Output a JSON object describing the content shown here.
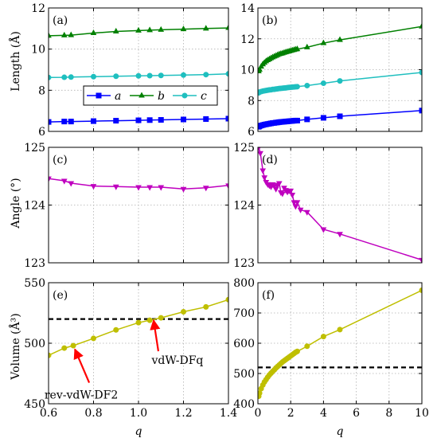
{
  "figure": {
    "ylabels": [
      "Length (Å)",
      "Angle (°)",
      "Volume (Å³)"
    ],
    "xlabel": "q",
    "colors": {
      "a": "#0000ff",
      "b": "#008000",
      "c": "#1fbfbf",
      "angle": "#bf00bf",
      "volume": "#bfbf00",
      "ref": "#000000",
      "arrow": "#ff0000"
    }
  },
  "chart_data": [
    {
      "panel": "(a)",
      "type": "line",
      "xlim": [
        0.6,
        1.4
      ],
      "ylim": [
        6,
        12
      ],
      "xticks": [
        "0.6",
        "0.8",
        "1.0",
        "1.2",
        "1.4"
      ],
      "yticks": [
        "6",
        "8",
        "10",
        "12"
      ],
      "show_xticklabels": false,
      "grid": true,
      "legend_placement": "center-left",
      "series": [
        {
          "name": "a",
          "color": "#0000ff",
          "marker": "square",
          "x": [
            0.6,
            0.67,
            0.7,
            0.8,
            0.9,
            1.0,
            1.05,
            1.1,
            1.2,
            1.3,
            1.4
          ],
          "y": [
            6.46,
            6.48,
            6.48,
            6.5,
            6.52,
            6.54,
            6.55,
            6.56,
            6.58,
            6.6,
            6.62
          ]
        },
        {
          "name": "b",
          "color": "#008000",
          "marker": "triangle-up",
          "x": [
            0.6,
            0.67,
            0.7,
            0.8,
            0.9,
            1.0,
            1.05,
            1.1,
            1.2,
            1.3,
            1.4
          ],
          "y": [
            10.65,
            10.67,
            10.68,
            10.78,
            10.86,
            10.9,
            10.92,
            10.94,
            10.97,
            11.0,
            11.03
          ]
        },
        {
          "name": "c",
          "color": "#1fbfbf",
          "marker": "circle",
          "x": [
            0.6,
            0.67,
            0.7,
            0.8,
            0.9,
            1.0,
            1.05,
            1.1,
            1.2,
            1.3,
            1.4
          ],
          "y": [
            8.62,
            8.63,
            8.64,
            8.66,
            8.68,
            8.7,
            8.71,
            8.72,
            8.74,
            8.76,
            8.8
          ]
        }
      ]
    },
    {
      "panel": "(b)",
      "type": "line",
      "xlim": [
        0,
        10
      ],
      "ylim": [
        6,
        14
      ],
      "xticks": [
        "0",
        "2",
        "4",
        "6",
        "8",
        "10"
      ],
      "yticks": [
        "6",
        "8",
        "10",
        "12",
        "14"
      ],
      "show_xticklabels": false,
      "grid": true,
      "series": [
        {
          "name": "a",
          "color": "#0000ff",
          "marker": "square",
          "x": [
            0.05,
            0.1,
            0.2,
            0.3,
            0.4,
            0.5,
            0.6,
            0.7,
            0.8,
            0.9,
            1.0,
            1.1,
            1.2,
            1.3,
            1.4,
            1.5,
            1.6,
            1.7,
            1.8,
            1.9,
            2.0,
            2.1,
            2.2,
            2.3,
            2.4,
            3.0,
            4.0,
            5.0,
            10.0
          ],
          "y": [
            6.3,
            6.34,
            6.38,
            6.41,
            6.44,
            6.46,
            6.48,
            6.5,
            6.52,
            6.54,
            6.55,
            6.57,
            6.58,
            6.6,
            6.61,
            6.62,
            6.63,
            6.64,
            6.65,
            6.66,
            6.67,
            6.68,
            6.69,
            6.7,
            6.7,
            6.78,
            6.88,
            6.98,
            7.35
          ]
        },
        {
          "name": "b",
          "color": "#008000",
          "marker": "triangle-up",
          "x": [
            0.05,
            0.1,
            0.2,
            0.3,
            0.4,
            0.5,
            0.6,
            0.7,
            0.8,
            0.9,
            1.0,
            1.1,
            1.2,
            1.3,
            1.4,
            1.5,
            1.6,
            1.7,
            1.8,
            1.9,
            2.0,
            2.1,
            2.2,
            2.3,
            2.4,
            3.0,
            4.0,
            5.0,
            10.0
          ],
          "y": [
            9.9,
            10.0,
            10.2,
            10.35,
            10.45,
            10.55,
            10.62,
            10.68,
            10.74,
            10.8,
            10.85,
            10.9,
            10.95,
            11.0,
            11.03,
            11.06,
            11.1,
            11.13,
            11.16,
            11.19,
            11.22,
            11.25,
            11.28,
            11.31,
            11.33,
            11.45,
            11.72,
            11.93,
            12.8
          ]
        },
        {
          "name": "c",
          "color": "#1fbfbf",
          "marker": "circle",
          "x": [
            0.05,
            0.1,
            0.2,
            0.3,
            0.4,
            0.5,
            0.6,
            0.7,
            0.8,
            0.9,
            1.0,
            1.1,
            1.2,
            1.3,
            1.4,
            1.5,
            1.6,
            1.7,
            1.8,
            1.9,
            2.0,
            2.1,
            2.2,
            2.3,
            2.4,
            3.0,
            4.0,
            5.0,
            10.0
          ],
          "y": [
            8.5,
            8.55,
            8.58,
            8.61,
            8.63,
            8.65,
            8.67,
            8.69,
            8.7,
            8.72,
            8.73,
            8.75,
            8.76,
            8.78,
            8.79,
            8.8,
            8.81,
            8.82,
            8.84,
            8.85,
            8.86,
            8.87,
            8.88,
            8.89,
            8.9,
            8.97,
            9.12,
            9.27,
            9.82
          ]
        }
      ]
    },
    {
      "panel": "(c)",
      "type": "line",
      "xlim": [
        0.6,
        1.4
      ],
      "ylim": [
        123,
        125
      ],
      "xticks": [
        "0.6",
        "0.8",
        "1.0",
        "1.2",
        "1.4"
      ],
      "yticks": [
        "123",
        "124",
        "125"
      ],
      "show_xticklabels": false,
      "grid": true,
      "series": [
        {
          "name": "angle",
          "color": "#bf00bf",
          "marker": "triangle-down",
          "x": [
            0.6,
            0.67,
            0.7,
            0.8,
            0.9,
            1.0,
            1.05,
            1.1,
            1.2,
            1.3,
            1.4
          ],
          "y": [
            124.46,
            124.42,
            124.38,
            124.33,
            124.32,
            124.31,
            124.31,
            124.31,
            124.28,
            124.3,
            124.34
          ]
        }
      ]
    },
    {
      "panel": "(d)",
      "type": "line",
      "xlim": [
        0,
        10
      ],
      "ylim": [
        123,
        125
      ],
      "xticks": [
        "0",
        "2",
        "4",
        "6",
        "8",
        "10"
      ],
      "yticks": [
        "123",
        "124",
        "125"
      ],
      "show_xticklabels": false,
      "grid": true,
      "series": [
        {
          "name": "angle",
          "color": "#bf00bf",
          "marker": "triangle-down",
          "x": [
            0.05,
            0.15,
            0.3,
            0.4,
            0.5,
            0.6,
            0.7,
            0.8,
            0.9,
            1.0,
            1.1,
            1.2,
            1.3,
            1.4,
            1.5,
            1.6,
            1.7,
            1.8,
            1.9,
            2.0,
            2.1,
            2.2,
            2.3,
            2.4,
            2.6,
            3.0,
            4.0,
            5.0,
            10.0
          ],
          "y": [
            125.0,
            124.9,
            124.6,
            124.48,
            124.4,
            124.36,
            124.34,
            124.32,
            124.36,
            124.33,
            124.28,
            124.35,
            124.38,
            124.22,
            124.2,
            124.3,
            124.26,
            124.23,
            124.25,
            124.25,
            124.18,
            124.05,
            123.98,
            124.05,
            123.92,
            123.88,
            123.58,
            123.5,
            123.05
          ]
        }
      ]
    },
    {
      "panel": "(e)",
      "type": "line",
      "xlim": [
        0.6,
        1.4
      ],
      "ylim": [
        450,
        550
      ],
      "xticks": [
        "0.6",
        "0.8",
        "1.0",
        "1.2",
        "1.4"
      ],
      "yticks": [
        "450",
        "500",
        "550"
      ],
      "show_xticklabels": true,
      "grid": true,
      "reference_y": 520,
      "annotations": [
        {
          "text": "vdW-DFq",
          "x": 1.06,
          "y": 521
        },
        {
          "text": "rev-vdW-DF2",
          "x": 0.71,
          "y": 497
        }
      ],
      "series": [
        {
          "name": "volume",
          "color": "#bfbf00",
          "marker": "circle",
          "x": [
            0.6,
            0.67,
            0.71,
            0.8,
            0.9,
            1.0,
            1.05,
            1.1,
            1.2,
            1.3,
            1.4
          ],
          "y": [
            490,
            496,
            498,
            504,
            511,
            517,
            519,
            521,
            526,
            530,
            536
          ]
        }
      ]
    },
    {
      "panel": "(f)",
      "type": "line",
      "xlim": [
        0,
        10
      ],
      "ylim": [
        400,
        800
      ],
      "xticks": [
        "0",
        "2",
        "4",
        "6",
        "8",
        "10"
      ],
      "yticks": [
        "400",
        "500",
        "600",
        "700",
        "800"
      ],
      "show_xticklabels": true,
      "grid": true,
      "reference_y": 520,
      "series": [
        {
          "name": "volume",
          "color": "#bfbf00",
          "marker": "circle",
          "x": [
            0.05,
            0.1,
            0.2,
            0.3,
            0.4,
            0.5,
            0.6,
            0.7,
            0.8,
            0.9,
            1.0,
            1.1,
            1.2,
            1.3,
            1.4,
            1.5,
            1.6,
            1.7,
            1.8,
            1.9,
            2.0,
            2.1,
            2.2,
            2.3,
            2.4,
            3.0,
            4.0,
            5.0,
            10.0
          ],
          "y": [
            425,
            435,
            450,
            462,
            472,
            480,
            488,
            495,
            501,
            507,
            512,
            518,
            523,
            528,
            533,
            538,
            542,
            546,
            550,
            554,
            558,
            562,
            566,
            570,
            573,
            590,
            622,
            645,
            775
          ]
        }
      ]
    }
  ]
}
